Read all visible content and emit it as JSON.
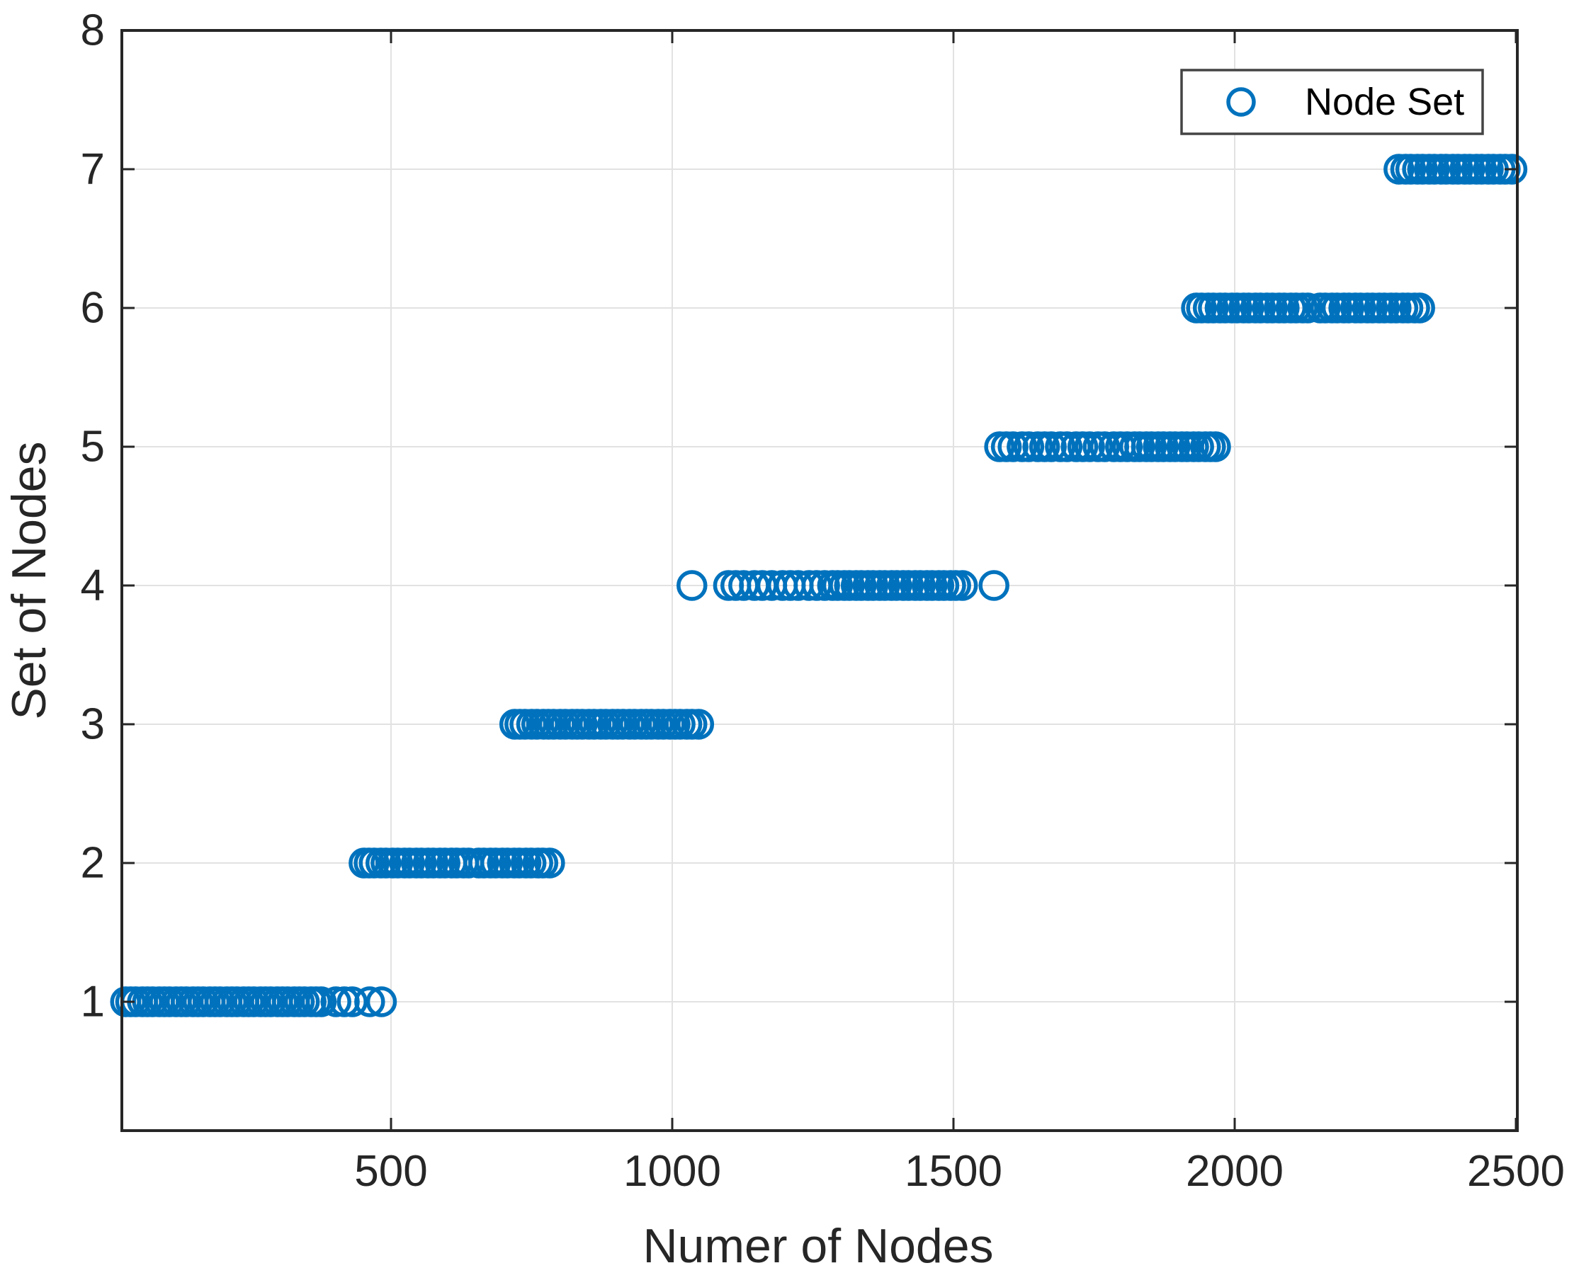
{
  "style": {
    "marker_color": "#0072BD",
    "axis_color": "#262626",
    "grid_color": "#e2e2e2",
    "background": "#ffffff",
    "legend_border_color": "#444444"
  },
  "chart_data": {
    "type": "scatter",
    "title": "",
    "xlabel": "Numer of Nodes",
    "ylabel": "Set of Nodes",
    "marker": "open-circle",
    "grid": true,
    "xlim": [
      0,
      2500
    ],
    "ylim": [
      0,
      8
    ],
    "x_ticks": [
      500,
      1000,
      1500,
      2000,
      2500
    ],
    "y_ticks": [
      1,
      2,
      3,
      4,
      5,
      6,
      7,
      8
    ],
    "legend": {
      "position": "top-right",
      "entries": [
        "Node Set"
      ]
    },
    "series": [
      {
        "name": "Node Set",
        "groups": [
          {
            "set": 1,
            "x": [
              28,
              37,
              46,
              58,
              67,
              76,
              88,
              97,
              106,
              118,
              127,
              136,
              148,
              157,
              166,
              178,
              187,
              196,
              208,
              217,
              226,
              238,
              247,
              256,
              268,
              277,
              286,
              298,
              307,
              316,
              328,
              337,
              346,
              358,
              367,
              376,
              402,
              417,
              431,
              462,
              483
            ]
          },
          {
            "set": 2,
            "x": [
              452,
              461,
              470,
              482,
              491,
              503,
              512,
              524,
              533,
              545,
              554,
              566,
              575,
              587,
              596,
              608,
              617,
              629,
              638,
              656,
              665,
              677,
              686,
              698,
              707,
              719,
              728,
              740,
              749,
              761,
              770,
              782
            ]
          },
          {
            "set": 3,
            "x": [
              720,
              729,
              738,
              750,
              759,
              771,
              780,
              789,
              801,
              810,
              822,
              831,
              840,
              852,
              861,
              873,
              882,
              894,
              903,
              912,
              924,
              933,
              945,
              954,
              963,
              975,
              984,
              996,
              1005,
              1014,
              1026,
              1035,
              1047
            ]
          },
          {
            "set": 4,
            "x": [
              1035,
              1100,
              1113,
              1127,
              1146,
              1160,
              1177,
              1196,
              1210,
              1224,
              1243,
              1257,
              1271,
              1285,
              1294,
              1306,
              1315,
              1327,
              1336,
              1348,
              1357,
              1369,
              1378,
              1390,
              1399,
              1411,
              1420,
              1432,
              1441,
              1453,
              1462,
              1474,
              1483,
              1495,
              1504,
              1516,
              1572
            ]
          },
          {
            "set": 5,
            "x": [
              1582,
              1594,
              1606,
              1622,
              1634,
              1650,
              1662,
              1674,
              1690,
              1702,
              1718,
              1730,
              1742,
              1757,
              1769,
              1785,
              1797,
              1809,
              1822,
              1831,
              1843,
              1852,
              1864,
              1873,
              1885,
              1894,
              1906,
              1915,
              1927,
              1936,
              1948,
              1957,
              1966
            ]
          },
          {
            "set": 6,
            "x": [
              1932,
              1941,
              1953,
              1962,
              1974,
              1983,
              1995,
              2004,
              2016,
              2025,
              2037,
              2046,
              2058,
              2067,
              2079,
              2088,
              2100,
              2109,
              2121,
              2130,
              2152,
              2161,
              2173,
              2182,
              2194,
              2203,
              2215,
              2224,
              2236,
              2245,
              2257,
              2266,
              2278,
              2287,
              2299,
              2308,
              2320,
              2329
            ]
          },
          {
            "set": 7,
            "x": [
              2292,
              2304,
              2313,
              2325,
              2334,
              2346,
              2355,
              2367,
              2376,
              2388,
              2397,
              2409,
              2418,
              2430,
              2439,
              2451,
              2460,
              2472,
              2481,
              2493
            ]
          }
        ]
      }
    ]
  }
}
